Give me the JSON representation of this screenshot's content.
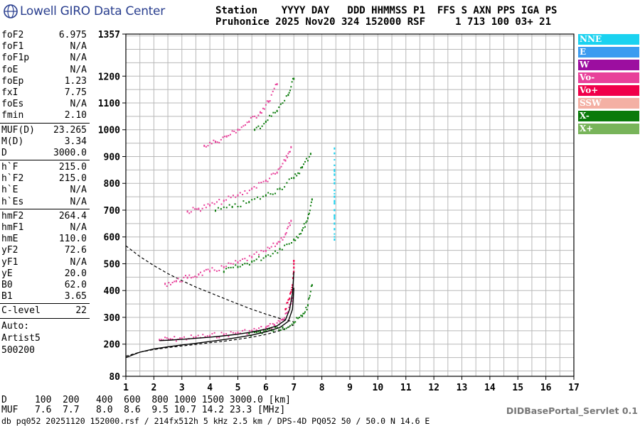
{
  "logo": {
    "text": "Lowell GIRO Data Center"
  },
  "header": {
    "line1": "Station    YYYY DAY   DDD HHMMSS P1  FFS S AXN PPS IGA PS",
    "line2": "Pruhonice 2025 Nov20 324 152000 RSF     1 713 100 03+ 21"
  },
  "params": [
    {
      "name": "foF2",
      "value": "6.975"
    },
    {
      "name": "foF1",
      "value": "N/A"
    },
    {
      "name": "foF1p",
      "value": "N/A"
    },
    {
      "name": "foE",
      "value": "N/A"
    },
    {
      "name": "foEp",
      "value": "1.23"
    },
    {
      "name": "fxI",
      "value": "7.75"
    },
    {
      "name": "foEs",
      "value": "N/A"
    },
    {
      "name": "fmin",
      "value": "2.10"
    },
    {
      "sep": true
    },
    {
      "name": "MUF(D)",
      "value": "23.265"
    },
    {
      "name": "M(D)",
      "value": "3.34"
    },
    {
      "name": "D",
      "value": "3000.0"
    },
    {
      "sep": true
    },
    {
      "name": "h`F",
      "value": "215.0"
    },
    {
      "name": "h`F2",
      "value": "215.0"
    },
    {
      "name": "h`E",
      "value": "N/A"
    },
    {
      "name": "h`Es",
      "value": "N/A"
    },
    {
      "sep": true
    },
    {
      "name": "hmF2",
      "value": "264.4"
    },
    {
      "name": "hmF1",
      "value": "N/A"
    },
    {
      "name": "hmE",
      "value": "110.0"
    },
    {
      "name": "yF2",
      "value": "72.6"
    },
    {
      "name": "yF1",
      "value": "N/A"
    },
    {
      "name": "yE",
      "value": "20.0"
    },
    {
      "name": "B0",
      "value": "62.0"
    },
    {
      "name": "B1",
      "value": "3.65"
    },
    {
      "sep": true
    },
    {
      "name": "C-level",
      "value": "22"
    },
    {
      "sep": true
    }
  ],
  "auto": {
    "line1": "Auto:",
    "line2": "Artist5",
    "line3": "500200"
  },
  "legend": [
    {
      "label": "NNE",
      "color": "#1ad2f0"
    },
    {
      "label": "E",
      "color": "#3b9cf0"
    },
    {
      "label": "W",
      "color": "#9c0ea0"
    },
    {
      "label": "Vo-",
      "color": "#e8409a"
    },
    {
      "label": "Vo+",
      "color": "#f0004a"
    },
    {
      "label": "SSW",
      "color": "#f4b0a4"
    },
    {
      "label": "X-",
      "color": "#0a7a0a"
    },
    {
      "label": "X+",
      "color": "#78b45a"
    }
  ],
  "bottom": {
    "dline": "D     100  200   400  600  800 1000 1500 3000.0 [km]",
    "mufline": "MUF   7.6  7.7   8.0  8.6  9.5 10.7 14.2 23.3 [MHz]"
  },
  "servlet": "DIDBasePortal_Servlet 0.1",
  "footer": "db pq052 20251120 152000.rsf / 214fx512h 5 kHz 2.5 km / DPS-4D PQ052 50 / 50.0 N 14.6 E",
  "chart_data": {
    "type": "scatter",
    "title": "",
    "xlabel": "",
    "ylabel": "",
    "x_unit": "MHz",
    "y_unit": "km",
    "xlim": [
      1,
      17
    ],
    "ylim": [
      80,
      1357
    ],
    "x_ticks": [
      "1",
      "2",
      "3",
      "4",
      "5",
      "6",
      "7",
      "8",
      "9",
      "10",
      "11",
      "12",
      "13",
      "14",
      "15",
      "16",
      "17"
    ],
    "y_ticks": [
      "80",
      "200",
      "300",
      "400",
      "500",
      "600",
      "700",
      "800",
      "900",
      "1000",
      "1100",
      "1200",
      "1357"
    ],
    "grid": true,
    "traces": [
      {
        "name": "O-trace 1st hop",
        "color": "#e8409a",
        "x": [
          2.2,
          2.6,
          3.0,
          3.5,
          4.0,
          4.5,
          5.0,
          5.5,
          6.0,
          6.3,
          6.6,
          6.8,
          6.95
        ],
        "y": [
          216,
          218,
          221,
          226,
          231,
          236,
          243,
          250,
          262,
          272,
          292,
          320,
          372
        ]
      },
      {
        "name": "X-trace 1st hop",
        "color": "#0a7a0a",
        "x": [
          5.4,
          5.8,
          6.2,
          6.6,
          7.0,
          7.3,
          7.5,
          7.65
        ],
        "y": [
          240,
          246,
          252,
          262,
          280,
          305,
          345,
          420
        ]
      },
      {
        "name": "O-trace 2nd hop",
        "color": "#e8409a",
        "x": [
          2.4,
          2.8,
          3.2,
          3.6,
          4.0,
          4.5,
          5.0,
          5.5,
          6.0,
          6.4,
          6.7,
          6.9
        ],
        "y": [
          425,
          435,
          448,
          460,
          472,
          487,
          505,
          525,
          548,
          575,
          610,
          660
        ]
      },
      {
        "name": "X-trace 2nd hop",
        "color": "#0a7a0a",
        "x": [
          4.5,
          5.0,
          5.5,
          6.0,
          6.5,
          7.0,
          7.3,
          7.5,
          7.65
        ],
        "y": [
          470,
          488,
          508,
          528,
          555,
          590,
          625,
          670,
          740
        ]
      },
      {
        "name": "O-trace 3rd hop",
        "color": "#e8409a",
        "x": [
          3.2,
          3.6,
          4.0,
          4.5,
          5.0,
          5.5,
          6.0,
          6.4,
          6.7,
          6.9
        ],
        "y": [
          695,
          705,
          718,
          735,
          755,
          780,
          810,
          840,
          885,
          935
        ]
      },
      {
        "name": "X-trace 3rd hop",
        "color": "#0a7a0a",
        "x": [
          4.2,
          4.8,
          5.4,
          6.0,
          6.5,
          7.0,
          7.3,
          7.6
        ],
        "y": [
          698,
          712,
          730,
          755,
          780,
          820,
          860,
          910
        ]
      },
      {
        "name": "O-trace 4th hop",
        "color": "#e8409a",
        "x": [
          3.8,
          4.2,
          4.6,
          5.0,
          5.4,
          5.8,
          6.1,
          6.4
        ],
        "y": [
          940,
          955,
          975,
          1000,
          1030,
          1065,
          1105,
          1170
        ]
      },
      {
        "name": "X-trace 4th hop",
        "color": "#0a7a0a",
        "x": [
          5.6,
          6.0,
          6.4,
          6.8,
          7.0
        ],
        "y": [
          1000,
          1030,
          1070,
          1130,
          1190
        ]
      },
      {
        "name": "NNE column 8.45",
        "color": "#1ad2f0",
        "x": [
          8.45,
          8.45,
          8.45,
          8.45,
          8.45,
          8.45,
          8.45
        ],
        "y": [
          590,
          650,
          700,
          750,
          800,
          850,
          930
        ]
      },
      {
        "name": "Vo+ cusp",
        "color": "#f0004a",
        "x": [
          6.7,
          6.85,
          6.95,
          7.0,
          7.0
        ],
        "y": [
          330,
          370,
          420,
          470,
          510
        ]
      }
    ],
    "profile_curve": {
      "x": [
        1.0,
        1.5,
        2.0,
        2.5,
        3.0,
        3.5,
        4.0,
        4.5,
        5.0,
        5.5,
        6.0,
        6.5,
        6.8,
        6.95,
        7.0
      ],
      "y": [
        150,
        170,
        182,
        190,
        197,
        203,
        210,
        217,
        225,
        234,
        246,
        262,
        285,
        330,
        410
      ]
    },
    "virtual_curve": {
      "x": [
        2.2,
        2.6,
        3.0,
        3.5,
        4.0,
        4.5,
        5.0,
        5.5,
        6.0,
        6.4,
        6.7,
        6.85,
        6.95,
        7.0
      ],
      "y": [
        213,
        215,
        218,
        222,
        226,
        231,
        237,
        245,
        256,
        268,
        290,
        330,
        390,
        470
      ]
    },
    "dashed_curve_1": {
      "x": [
        1.0,
        1.5,
        2.0,
        2.5,
        3.0,
        3.5,
        4.0,
        4.5,
        5.0,
        5.5,
        6.0,
        6.5,
        7.0
      ],
      "y": [
        567,
        527,
        493,
        463,
        437,
        413,
        392,
        371,
        350,
        330,
        312,
        296,
        283
      ]
    },
    "dashed_curve_2": {
      "x": [
        1.0,
        1.5,
        2.0,
        2.5,
        3.0,
        3.5,
        4.0,
        4.5,
        5.0,
        5.5,
        6.0,
        6.5,
        7.0
      ],
      "y": [
        155,
        170,
        180,
        187,
        193,
        199,
        205,
        211,
        218,
        226,
        236,
        250,
        272
      ]
    }
  }
}
